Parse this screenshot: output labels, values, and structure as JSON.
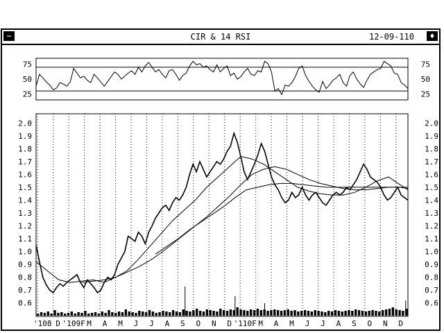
{
  "window": {
    "title": "CIR & 14 RSI",
    "date": "12-09-110",
    "menu_icon": "minus-box-icon",
    "resize_icon": "diamond-arrows-icon"
  },
  "chart_data": [
    {
      "type": "line",
      "name": "rsi",
      "ylim": [
        15,
        85
      ],
      "y_ticks": [
        "75",
        "50",
        "25"
      ],
      "y_tick_values": [
        75,
        50,
        25
      ],
      "reference_lines": [
        70,
        30
      ],
      "grid": false,
      "series": [
        {
          "x": [
            0,
            3,
            6,
            9,
            12,
            15,
            18,
            21,
            24,
            27,
            30,
            33,
            36,
            39,
            42,
            45,
            48,
            51,
            54,
            57,
            60,
            63,
            66,
            69,
            72,
            75,
            78,
            81,
            84,
            87,
            90,
            93,
            96,
            99,
            102,
            105,
            108,
            111,
            114,
            117,
            120,
            123,
            126,
            129,
            132,
            135,
            138,
            141,
            144,
            147,
            150,
            153,
            156,
            159,
            162,
            165,
            168,
            171,
            174,
            177,
            180,
            183,
            186,
            189,
            192,
            195,
            198,
            201,
            204,
            207,
            210,
            213,
            216,
            219,
            222,
            225,
            228,
            231,
            234,
            237,
            240,
            243,
            246,
            249,
            252,
            255,
            258,
            261,
            264,
            267,
            270,
            273,
            276,
            279,
            282,
            285,
            288,
            291,
            294,
            297,
            300,
            303,
            306,
            309,
            312,
            315,
            318,
            321,
            324,
            327
          ],
          "y": [
            38,
            58,
            52,
            45,
            40,
            32,
            35,
            44,
            42,
            38,
            45,
            68,
            60,
            52,
            55,
            48,
            44,
            58,
            52,
            45,
            38,
            46,
            54,
            62,
            58,
            50,
            55,
            60,
            64,
            58,
            70,
            62,
            72,
            78,
            70,
            62,
            66,
            58,
            52,
            64,
            66,
            58,
            48,
            56,
            60,
            72,
            80,
            74,
            76,
            70,
            72,
            66,
            62,
            74,
            62,
            68,
            72,
            56,
            60,
            50,
            54,
            62,
            68,
            58,
            56,
            64,
            62,
            80,
            76,
            62,
            30,
            34,
            24,
            40,
            38,
            44,
            54,
            68,
            72,
            56,
            46,
            38,
            32,
            28,
            46,
            34,
            40,
            48,
            52,
            58,
            44,
            38,
            56,
            62,
            50,
            42,
            36,
            48,
            58,
            62,
            66,
            68,
            80,
            76,
            72,
            60,
            58,
            44,
            40,
            34
          ]
        }
      ]
    },
    {
      "type": "line",
      "name": "price",
      "ylim": [
        0.55,
        2.05
      ],
      "y_ticks": [
        "2.0",
        "1.9",
        "1.8",
        "1.7",
        "1.6",
        "1.5",
        "1.4",
        "1.3",
        "1.2",
        "1.1",
        "1.0",
        "0.9",
        "0.8",
        "0.7",
        "0.6"
      ],
      "y_tick_values": [
        2.0,
        1.9,
        1.8,
        1.7,
        1.6,
        1.5,
        1.4,
        1.3,
        1.2,
        1.1,
        1.0,
        0.9,
        0.8,
        0.7,
        0.6
      ],
      "x_ticks": [
        "'108",
        "D",
        "'109F",
        "M",
        "A",
        "M",
        "J",
        "J",
        "A",
        "S",
        "O",
        "N",
        "D",
        "'110F",
        "M",
        "A",
        "M",
        "J",
        "J",
        "A",
        "S",
        "O",
        "N",
        "D"
      ],
      "grid": "vertical dotted",
      "series": [
        {
          "x": [
            0,
            3,
            6,
            9,
            12,
            15,
            18,
            21,
            24,
            27,
            30,
            33,
            36,
            39,
            42,
            45,
            48,
            51,
            54,
            57,
            60,
            63,
            66,
            69,
            72,
            75,
            78,
            81,
            84,
            87,
            90,
            93,
            96,
            99,
            102,
            105,
            108,
            111,
            114,
            117,
            120,
            123,
            126,
            129,
            132,
            135,
            138,
            141,
            144,
            147,
            150,
            153,
            156,
            159,
            162,
            165,
            168,
            171,
            174,
            177,
            180,
            183,
            186,
            189,
            192,
            195,
            198,
            201,
            204,
            207,
            210,
            213,
            216,
            219,
            222,
            225,
            228,
            231,
            234,
            237,
            240,
            243,
            246,
            249,
            252,
            255,
            258,
            261,
            264,
            267,
            270,
            273,
            276,
            279,
            282,
            285,
            288,
            291,
            294,
            297,
            300,
            303,
            306,
            309,
            312,
            315,
            318,
            321,
            324,
            327
          ],
          "y": [
            1.05,
            0.92,
            0.8,
            0.74,
            0.7,
            0.68,
            0.72,
            0.75,
            0.73,
            0.76,
            0.78,
            0.8,
            0.82,
            0.76,
            0.72,
            0.78,
            0.75,
            0.72,
            0.68,
            0.7,
            0.76,
            0.8,
            0.78,
            0.82,
            0.9,
            0.95,
            1.0,
            1.12,
            1.1,
            1.08,
            1.15,
            1.12,
            1.06,
            1.15,
            1.2,
            1.26,
            1.3,
            1.34,
            1.36,
            1.32,
            1.38,
            1.42,
            1.4,
            1.44,
            1.5,
            1.6,
            1.68,
            1.62,
            1.7,
            1.64,
            1.58,
            1.62,
            1.66,
            1.7,
            1.68,
            1.72,
            1.78,
            1.82,
            1.92,
            1.85,
            1.74,
            1.62,
            1.56,
            1.62,
            1.68,
            1.75,
            1.84,
            1.78,
            1.68,
            1.58,
            1.52,
            1.48,
            1.42,
            1.38,
            1.4,
            1.46,
            1.42,
            1.44,
            1.5,
            1.44,
            1.4,
            1.44,
            1.46,
            1.42,
            1.38,
            1.36,
            1.4,
            1.44,
            1.46,
            1.44,
            1.46,
            1.5,
            1.48,
            1.52,
            1.56,
            1.62,
            1.68,
            1.64,
            1.58,
            1.56,
            1.54,
            1.5,
            1.44,
            1.4,
            1.42,
            1.46,
            1.5,
            1.44,
            1.42,
            1.4
          ]
        },
        {
          "x": [
            0,
            10,
            20,
            30,
            40,
            50,
            60,
            70,
            80,
            90,
            100,
            110,
            120,
            130,
            140,
            150,
            160,
            170,
            180,
            190,
            200,
            210,
            220,
            230,
            240,
            250,
            260,
            270,
            280,
            290,
            300,
            310,
            320,
            327
          ],
          "y": [
            0.92,
            0.85,
            0.78,
            0.76,
            0.77,
            0.78,
            0.76,
            0.8,
            0.85,
            0.94,
            1.04,
            1.14,
            1.24,
            1.32,
            1.4,
            1.5,
            1.58,
            1.66,
            1.74,
            1.72,
            1.68,
            1.62,
            1.56,
            1.5,
            1.47,
            1.45,
            1.44,
            1.44,
            1.46,
            1.5,
            1.55,
            1.58,
            1.52,
            1.48
          ]
        },
        {
          "x": [
            40,
            50,
            60,
            70,
            80,
            90,
            100,
            110,
            120,
            130,
            140,
            150,
            160,
            170,
            180,
            190,
            200,
            210,
            220,
            230,
            240,
            250,
            260,
            270,
            280,
            290,
            300,
            310,
            320,
            327
          ],
          "y": [
            0.76,
            0.77,
            0.78,
            0.8,
            0.84,
            0.88,
            0.93,
            0.99,
            1.06,
            1.13,
            1.2,
            1.27,
            1.35,
            1.43,
            1.52,
            1.6,
            1.64,
            1.66,
            1.64,
            1.6,
            1.56,
            1.53,
            1.51,
            1.49,
            1.48,
            1.48,
            1.49,
            1.5,
            1.5,
            1.49
          ]
        },
        {
          "x": [
            105,
            115,
            125,
            135,
            145,
            155,
            165,
            175,
            185,
            195,
            205,
            215,
            225,
            235,
            245,
            255,
            265,
            275,
            285,
            295,
            305,
            315,
            327
          ],
          "y": [
            0.98,
            1.04,
            1.1,
            1.17,
            1.23,
            1.29,
            1.35,
            1.42,
            1.48,
            1.5,
            1.52,
            1.53,
            1.53,
            1.52,
            1.51,
            1.5,
            1.5,
            1.5,
            1.5,
            1.5,
            1.5,
            1.5,
            1.5
          ]
        }
      ]
    },
    {
      "type": "bar",
      "name": "volume",
      "values": [
        3,
        5,
        4,
        6,
        3,
        8,
        4,
        5,
        3,
        4,
        6,
        3,
        5,
        4,
        7,
        3,
        4,
        5,
        3,
        6,
        4,
        8,
        5,
        4,
        6,
        5,
        9,
        6,
        5,
        4,
        7,
        6,
        5,
        8,
        6,
        4,
        5,
        7,
        6,
        5,
        8,
        6,
        5,
        9,
        7,
        6,
        8,
        10,
        7,
        6,
        9,
        8,
        7,
        6,
        10,
        8,
        7,
        9,
        8,
        12,
        9,
        8,
        7,
        9,
        8,
        10,
        8,
        9,
        7,
        8,
        9,
        8,
        7,
        8,
        9,
        7,
        8,
        6,
        7,
        8,
        7,
        6,
        8,
        7,
        6,
        5,
        7,
        6,
        8,
        7,
        6,
        7,
        8,
        7,
        9,
        8,
        7,
        6,
        7,
        8,
        7,
        6,
        8,
        9,
        10,
        12,
        9,
        8,
        7,
        10
      ],
      "spikes": [
        {
          "x": 131,
          "v": 42
        },
        {
          "x": 175,
          "v": 28
        },
        {
          "x": 201,
          "v": 18
        },
        {
          "x": 325,
          "v": 22
        }
      ]
    }
  ]
}
